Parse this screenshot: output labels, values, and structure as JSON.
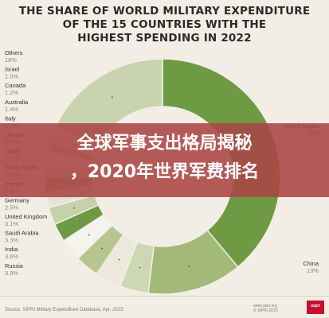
{
  "title_lines": [
    "THE SHARE OF WORLD MILITARY EXPENDITURE",
    "OF THE 15 COUNTRIES WITH THE",
    "HIGHEST SPENDING IN 2022"
  ],
  "overlay": {
    "line1": "全球军事支出格局揭秘",
    "line2": "，2020年世界军费排名"
  },
  "chart_data": {
    "type": "pie",
    "title": "THE SHARE OF WORLD MILITARY EXPENDITURE OF THE 15 COUNTRIES WITH THE HIGHEST SPENDING IN 2022",
    "slices": [
      {
        "name": "United States",
        "value": 39,
        "label": "39%",
        "color": "#6f9a44"
      },
      {
        "name": "China",
        "value": 13,
        "label": "13%",
        "color": "#a3b978"
      },
      {
        "name": "Russia",
        "value": 3.9,
        "label": "3.9%",
        "color": "#cdd7b2"
      },
      {
        "name": "India",
        "value": 3.6,
        "label": "3.6%",
        "color": "#ece9dc"
      },
      {
        "name": "Saudi Arabia",
        "value": 3.3,
        "label": "3.3%",
        "color": "#b6c68e"
      },
      {
        "name": "United Kingdom",
        "value": 3.1,
        "label": "3.1%",
        "color": "#f4f4ee"
      },
      {
        "name": "Germany",
        "value": 2.5,
        "label": "2.5%",
        "color": "#6f9a44"
      },
      {
        "name": "France",
        "value": 2.4,
        "label": "2.4%",
        "color": "#c5d1a7"
      },
      {
        "name": "South Korea",
        "value": 2.1,
        "label": "2.1%",
        "color": "#e6e3d6"
      },
      {
        "name": "Japan",
        "value": 2.1,
        "label": "2.1%",
        "color": "#a9bc80"
      },
      {
        "name": "Ukraine",
        "value": 2.0,
        "label": "2.0%",
        "color": "#d3dbbb"
      },
      {
        "name": "Italy",
        "value": 1.5,
        "label": "1.5%",
        "color": "#eeece1"
      },
      {
        "name": "Australia",
        "value": 1.4,
        "label": "1.4%",
        "color": "#bac9933"
      },
      {
        "name": "Canada",
        "value": 1.2,
        "label": "1.2%",
        "color": "#d9dfc5"
      },
      {
        "name": "Israel",
        "value": 1.0,
        "label": "1.0%",
        "color": "#e9e7db"
      },
      {
        "name": "Others",
        "value": 18,
        "label": "18%",
        "color": "#c9d3ad"
      }
    ]
  },
  "footer": {
    "source": "Source: SIPRI Military Expenditure Database, Apr. 2023.",
    "credit": "www.sipri.org\n© SIPRI 2023",
    "logo": "sipri"
  }
}
